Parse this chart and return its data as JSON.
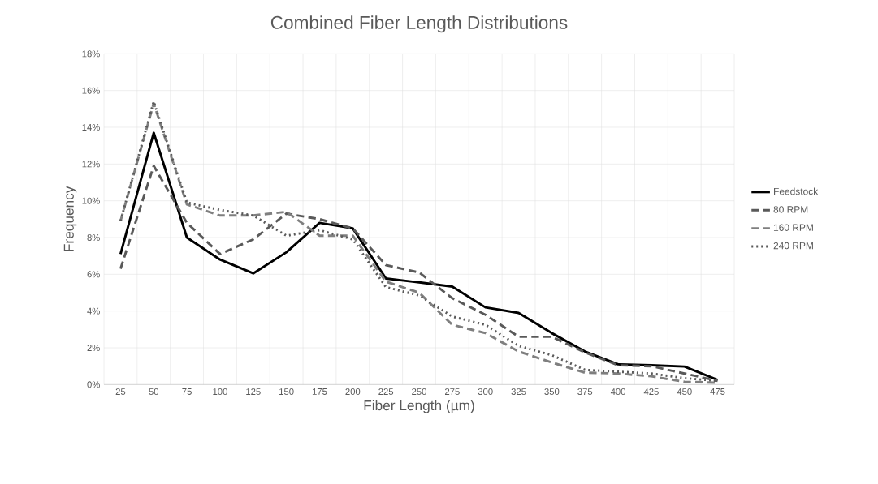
{
  "chart_data": {
    "type": "line",
    "title": "Combined Fiber Length Distributions",
    "xlabel": "Fiber Length (µm)",
    "ylabel": "Frequency",
    "categories": [
      "25",
      "50",
      "75",
      "100",
      "125",
      "150",
      "175",
      "200",
      "225",
      "250",
      "275",
      "300",
      "325",
      "350",
      "375",
      "400",
      "425",
      "450",
      "475"
    ],
    "series": [
      {
        "name": "Feedstock",
        "color": "#000000",
        "line_style": "solid",
        "values": [
          7.1,
          13.7,
          8.0,
          6.8,
          6.05,
          7.2,
          8.8,
          8.5,
          5.77,
          5.56,
          5.33,
          4.2,
          3.9,
          2.8,
          1.8,
          1.1,
          1.05,
          0.98,
          0.25
        ]
      },
      {
        "name": "80 RPM",
        "color": "#595959",
        "line_style": "dashed",
        "values": [
          6.3,
          11.9,
          8.8,
          7.1,
          7.9,
          9.3,
          9.0,
          8.5,
          6.5,
          6.1,
          4.7,
          3.8,
          2.6,
          2.6,
          1.75,
          1.05,
          1.0,
          0.6,
          0.2
        ]
      },
      {
        "name": "160 RPM",
        "color": "#7f7f7f",
        "line_style": "dashed",
        "values": [
          8.9,
          15.3,
          9.8,
          9.2,
          9.2,
          9.4,
          8.1,
          8.1,
          5.6,
          5.0,
          3.25,
          2.8,
          1.8,
          1.2,
          0.65,
          0.6,
          0.45,
          0.15,
          0.1
        ]
      },
      {
        "name": "240 RPM",
        "color": "#595959",
        "line_style": "dotted",
        "values": [
          8.9,
          15.4,
          9.9,
          9.5,
          9.2,
          8.1,
          8.4,
          7.9,
          5.3,
          4.85,
          3.7,
          3.25,
          2.1,
          1.6,
          0.8,
          0.7,
          0.6,
          0.35,
          0.2
        ]
      }
    ],
    "ylim": [
      0,
      18
    ],
    "yticks": [
      {
        "value": 0,
        "label": "0%"
      },
      {
        "value": 2,
        "label": "2%"
      },
      {
        "value": 4,
        "label": "4%"
      },
      {
        "value": 6,
        "label": "6%"
      },
      {
        "value": 8,
        "label": "8%"
      },
      {
        "value": 10,
        "label": "10%"
      },
      {
        "value": 12,
        "label": "12%"
      },
      {
        "value": 14,
        "label": "14%"
      },
      {
        "value": 16,
        "label": "16%"
      },
      {
        "value": 18,
        "label": "18%"
      }
    ],
    "grid": true,
    "legend": "right"
  }
}
